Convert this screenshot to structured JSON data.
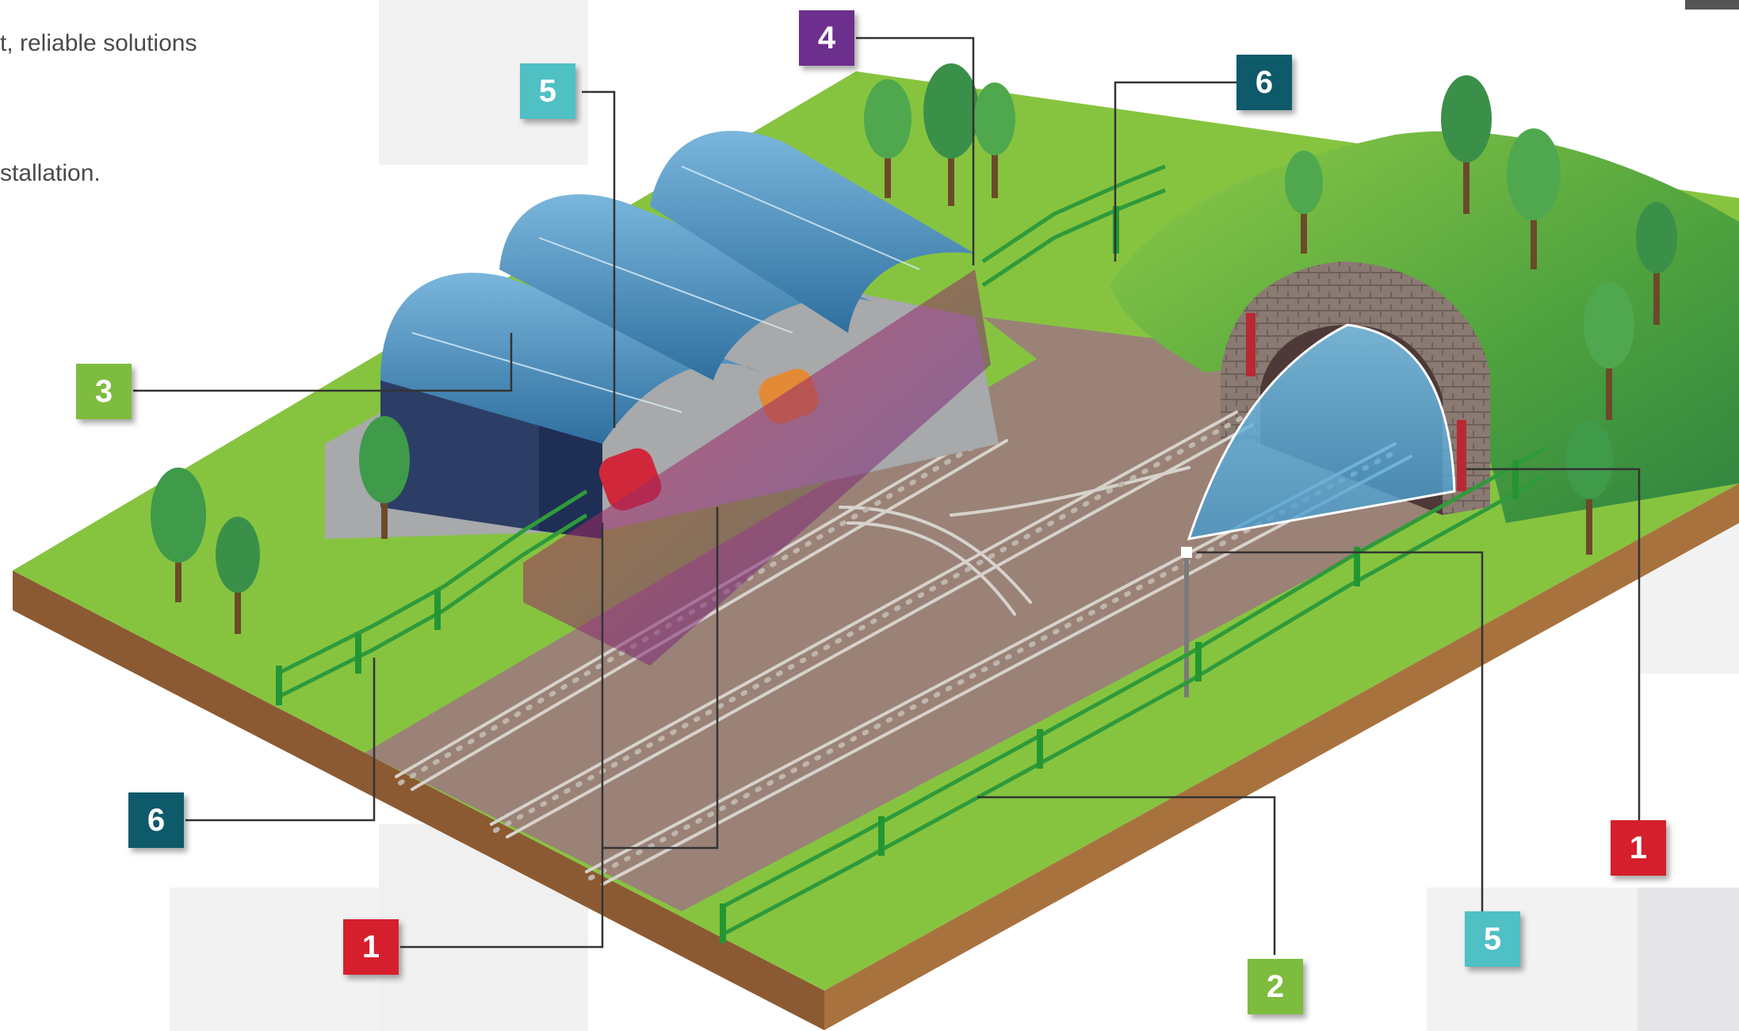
{
  "intro": {
    "line1": "t, reliable solutions",
    "line2": "stallation."
  },
  "colors": {
    "red": "#d51f2c",
    "green": "#7dbc3e",
    "purple": "#6d2f8e",
    "dark_teal": "#0e5a6a",
    "light_teal": "#4fc0c4",
    "grass": "#86c440",
    "soil": "#9b6a3f",
    "ballast": "#9a8277"
  },
  "markers": {
    "m5_top": "5",
    "m4_top": "4",
    "m6_top": "6",
    "m3_left": "3",
    "m6_bottom": "6",
    "m1_bottom": "1",
    "m2_bottom": "2",
    "m5_bottom": "5",
    "m1_right": "1"
  }
}
